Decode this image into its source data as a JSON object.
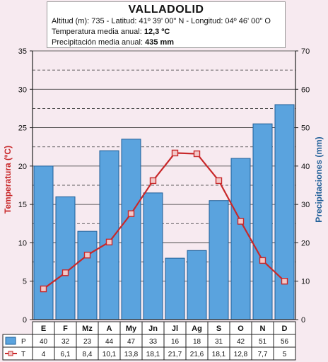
{
  "header": {
    "title": "VALLADOLID",
    "line1": "Altitud (m): 735 - Latitud: 41º 39' 00\" N - Longitud: 04º 46' 00\" O",
    "line2_label": "Temperatura media anual: ",
    "line2_value": "12,3 ºC",
    "line3_label": "Precipitación media anual: ",
    "line3_value": "435 mm"
  },
  "chart_data": {
    "type": "bar+line",
    "categories": [
      "E",
      "F",
      "Mz",
      "A",
      "My",
      "Jn",
      "Jl",
      "Ag",
      "S",
      "O",
      "N",
      "D"
    ],
    "series": [
      {
        "name": "P",
        "kind": "bar",
        "axis": "right",
        "values": [
          40,
          32,
          23,
          44,
          47,
          33,
          16,
          18,
          31,
          42,
          51,
          56
        ],
        "labels": [
          "40",
          "32",
          "23",
          "44",
          "47",
          "33",
          "16",
          "18",
          "31",
          "42",
          "51",
          "56"
        ]
      },
      {
        "name": "T",
        "kind": "line",
        "axis": "left",
        "values": [
          4,
          6.1,
          8.4,
          10.1,
          13.8,
          18.1,
          21.7,
          21.6,
          18.1,
          12.8,
          7.7,
          5
        ],
        "labels": [
          "4",
          "6,1",
          "8,4",
          "10,1",
          "13,8",
          "18,1",
          "21,7",
          "21,6",
          "18,1",
          "12,8",
          "7,7",
          "5"
        ]
      }
    ],
    "ylabel_left": "Temperatura (ºC)",
    "ylabel_right": "Precipitaciones (mm)",
    "ylim_left": [
      0,
      35
    ],
    "ylim_right": [
      0,
      70
    ],
    "yticks_left": [
      "0",
      "5",
      "10",
      "15",
      "20",
      "25",
      "30",
      "35"
    ],
    "yticks_right": [
      "0",
      "10",
      "20",
      "30",
      "40",
      "50",
      "60",
      "70"
    ],
    "grid": true,
    "colors": {
      "bar": "#5aa3de",
      "bar_edge": "#1f5f98",
      "line": "#c8282a",
      "marker_fill": "#f2c8c8",
      "axis": "#222"
    }
  }
}
